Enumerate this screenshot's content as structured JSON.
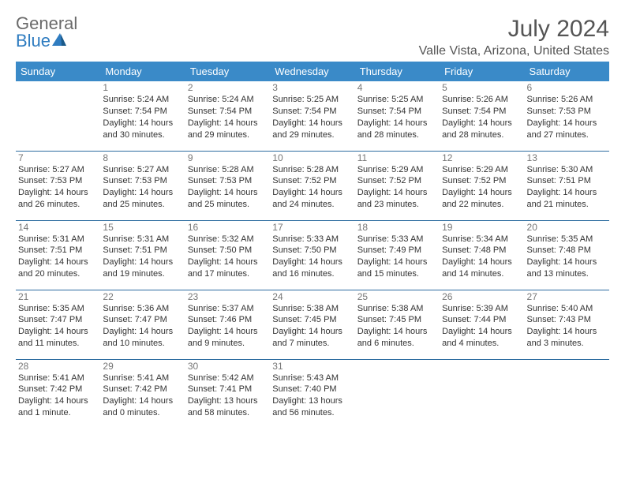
{
  "logo": {
    "text1": "General",
    "text2": "Blue"
  },
  "title": "July 2024",
  "location": "Valle Vista, Arizona, United States",
  "colors": {
    "header_bg": "#3a8ac8",
    "header_text": "#ffffff",
    "row_border": "#2c6ca0",
    "day_num": "#777777",
    "body_text": "#333333",
    "title_text": "#555555",
    "logo_general": "#6a6a6a",
    "logo_blue": "#2f7cc0"
  },
  "typography": {
    "title_fontsize": 30,
    "location_fontsize": 16,
    "header_fontsize": 13,
    "cell_fontsize": 11
  },
  "day_headers": [
    "Sunday",
    "Monday",
    "Tuesday",
    "Wednesday",
    "Thursday",
    "Friday",
    "Saturday"
  ],
  "weeks": [
    [
      null,
      {
        "n": "1",
        "sunrise": "Sunrise: 5:24 AM",
        "sunset": "Sunset: 7:54 PM",
        "day1": "Daylight: 14 hours",
        "day2": "and 30 minutes."
      },
      {
        "n": "2",
        "sunrise": "Sunrise: 5:24 AM",
        "sunset": "Sunset: 7:54 PM",
        "day1": "Daylight: 14 hours",
        "day2": "and 29 minutes."
      },
      {
        "n": "3",
        "sunrise": "Sunrise: 5:25 AM",
        "sunset": "Sunset: 7:54 PM",
        "day1": "Daylight: 14 hours",
        "day2": "and 29 minutes."
      },
      {
        "n": "4",
        "sunrise": "Sunrise: 5:25 AM",
        "sunset": "Sunset: 7:54 PM",
        "day1": "Daylight: 14 hours",
        "day2": "and 28 minutes."
      },
      {
        "n": "5",
        "sunrise": "Sunrise: 5:26 AM",
        "sunset": "Sunset: 7:54 PM",
        "day1": "Daylight: 14 hours",
        "day2": "and 28 minutes."
      },
      {
        "n": "6",
        "sunrise": "Sunrise: 5:26 AM",
        "sunset": "Sunset: 7:53 PM",
        "day1": "Daylight: 14 hours",
        "day2": "and 27 minutes."
      }
    ],
    [
      {
        "n": "7",
        "sunrise": "Sunrise: 5:27 AM",
        "sunset": "Sunset: 7:53 PM",
        "day1": "Daylight: 14 hours",
        "day2": "and 26 minutes."
      },
      {
        "n": "8",
        "sunrise": "Sunrise: 5:27 AM",
        "sunset": "Sunset: 7:53 PM",
        "day1": "Daylight: 14 hours",
        "day2": "and 25 minutes."
      },
      {
        "n": "9",
        "sunrise": "Sunrise: 5:28 AM",
        "sunset": "Sunset: 7:53 PM",
        "day1": "Daylight: 14 hours",
        "day2": "and 25 minutes."
      },
      {
        "n": "10",
        "sunrise": "Sunrise: 5:28 AM",
        "sunset": "Sunset: 7:52 PM",
        "day1": "Daylight: 14 hours",
        "day2": "and 24 minutes."
      },
      {
        "n": "11",
        "sunrise": "Sunrise: 5:29 AM",
        "sunset": "Sunset: 7:52 PM",
        "day1": "Daylight: 14 hours",
        "day2": "and 23 minutes."
      },
      {
        "n": "12",
        "sunrise": "Sunrise: 5:29 AM",
        "sunset": "Sunset: 7:52 PM",
        "day1": "Daylight: 14 hours",
        "day2": "and 22 minutes."
      },
      {
        "n": "13",
        "sunrise": "Sunrise: 5:30 AM",
        "sunset": "Sunset: 7:51 PM",
        "day1": "Daylight: 14 hours",
        "day2": "and 21 minutes."
      }
    ],
    [
      {
        "n": "14",
        "sunrise": "Sunrise: 5:31 AM",
        "sunset": "Sunset: 7:51 PM",
        "day1": "Daylight: 14 hours",
        "day2": "and 20 minutes."
      },
      {
        "n": "15",
        "sunrise": "Sunrise: 5:31 AM",
        "sunset": "Sunset: 7:51 PM",
        "day1": "Daylight: 14 hours",
        "day2": "and 19 minutes."
      },
      {
        "n": "16",
        "sunrise": "Sunrise: 5:32 AM",
        "sunset": "Sunset: 7:50 PM",
        "day1": "Daylight: 14 hours",
        "day2": "and 17 minutes."
      },
      {
        "n": "17",
        "sunrise": "Sunrise: 5:33 AM",
        "sunset": "Sunset: 7:50 PM",
        "day1": "Daylight: 14 hours",
        "day2": "and 16 minutes."
      },
      {
        "n": "18",
        "sunrise": "Sunrise: 5:33 AM",
        "sunset": "Sunset: 7:49 PM",
        "day1": "Daylight: 14 hours",
        "day2": "and 15 minutes."
      },
      {
        "n": "19",
        "sunrise": "Sunrise: 5:34 AM",
        "sunset": "Sunset: 7:48 PM",
        "day1": "Daylight: 14 hours",
        "day2": "and 14 minutes."
      },
      {
        "n": "20",
        "sunrise": "Sunrise: 5:35 AM",
        "sunset": "Sunset: 7:48 PM",
        "day1": "Daylight: 14 hours",
        "day2": "and 13 minutes."
      }
    ],
    [
      {
        "n": "21",
        "sunrise": "Sunrise: 5:35 AM",
        "sunset": "Sunset: 7:47 PM",
        "day1": "Daylight: 14 hours",
        "day2": "and 11 minutes."
      },
      {
        "n": "22",
        "sunrise": "Sunrise: 5:36 AM",
        "sunset": "Sunset: 7:47 PM",
        "day1": "Daylight: 14 hours",
        "day2": "and 10 minutes."
      },
      {
        "n": "23",
        "sunrise": "Sunrise: 5:37 AM",
        "sunset": "Sunset: 7:46 PM",
        "day1": "Daylight: 14 hours",
        "day2": "and 9 minutes."
      },
      {
        "n": "24",
        "sunrise": "Sunrise: 5:38 AM",
        "sunset": "Sunset: 7:45 PM",
        "day1": "Daylight: 14 hours",
        "day2": "and 7 minutes."
      },
      {
        "n": "25",
        "sunrise": "Sunrise: 5:38 AM",
        "sunset": "Sunset: 7:45 PM",
        "day1": "Daylight: 14 hours",
        "day2": "and 6 minutes."
      },
      {
        "n": "26",
        "sunrise": "Sunrise: 5:39 AM",
        "sunset": "Sunset: 7:44 PM",
        "day1": "Daylight: 14 hours",
        "day2": "and 4 minutes."
      },
      {
        "n": "27",
        "sunrise": "Sunrise: 5:40 AM",
        "sunset": "Sunset: 7:43 PM",
        "day1": "Daylight: 14 hours",
        "day2": "and 3 minutes."
      }
    ],
    [
      {
        "n": "28",
        "sunrise": "Sunrise: 5:41 AM",
        "sunset": "Sunset: 7:42 PM",
        "day1": "Daylight: 14 hours",
        "day2": "and 1 minute."
      },
      {
        "n": "29",
        "sunrise": "Sunrise: 5:41 AM",
        "sunset": "Sunset: 7:42 PM",
        "day1": "Daylight: 14 hours",
        "day2": "and 0 minutes."
      },
      {
        "n": "30",
        "sunrise": "Sunrise: 5:42 AM",
        "sunset": "Sunset: 7:41 PM",
        "day1": "Daylight: 13 hours",
        "day2": "and 58 minutes."
      },
      {
        "n": "31",
        "sunrise": "Sunrise: 5:43 AM",
        "sunset": "Sunset: 7:40 PM",
        "day1": "Daylight: 13 hours",
        "day2": "and 56 minutes."
      },
      null,
      null,
      null
    ]
  ]
}
